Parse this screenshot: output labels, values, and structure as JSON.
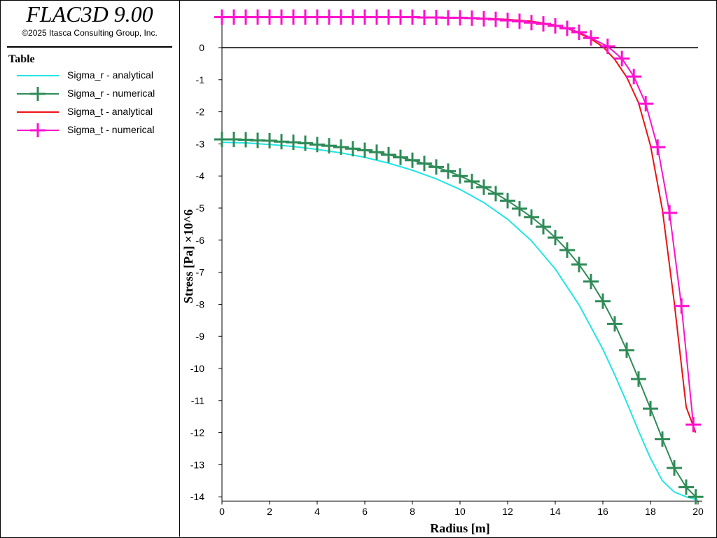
{
  "header": {
    "title": "FLAC3D 9.00",
    "copyright": "©2025 Itasca Consulting Group, Inc."
  },
  "legend": {
    "heading": "Table",
    "items": [
      {
        "label": "Sigma_r - analytical",
        "color": "#22e5e5",
        "marker": "none"
      },
      {
        "label": "Sigma_r - numerical",
        "color": "#2e8b57",
        "marker": "plus"
      },
      {
        "label": "Sigma_t - analytical",
        "color": "#ee1111",
        "marker": "none"
      },
      {
        "label": "Sigma_t - numerical",
        "color": "#ff11cc",
        "marker": "plus"
      }
    ]
  },
  "chart_data": {
    "type": "line",
    "xlabel": "Radius [m]",
    "ylabel": "Stress [Pa] ×10^6",
    "xlim": [
      0,
      20
    ],
    "ylim": [
      -14,
      1
    ],
    "x_ticks": [
      0,
      2,
      4,
      6,
      8,
      10,
      12,
      14,
      16,
      18,
      20
    ],
    "y_ticks": [
      0,
      -1,
      -2,
      -3,
      -4,
      -5,
      -6,
      -7,
      -8,
      -9,
      -10,
      -11,
      -12,
      -13,
      -14
    ],
    "zero_line": true,
    "legend_placement": "left panel",
    "series": [
      {
        "name": "Sigma_r - analytical",
        "color": "#22e5e5",
        "marker": "none",
        "x": [
          0,
          1,
          2,
          3,
          4,
          5,
          6,
          7,
          8,
          9,
          10,
          11,
          12,
          13,
          14,
          15,
          16,
          16.5,
          17,
          17.5,
          18,
          18.5,
          19,
          19.5,
          20
        ],
        "y": [
          -2.95,
          -2.97,
          -3.02,
          -3.08,
          -3.17,
          -3.28,
          -3.42,
          -3.6,
          -3.82,
          -4.09,
          -4.42,
          -4.83,
          -5.35,
          -6.02,
          -6.9,
          -8.02,
          -9.4,
          -10.2,
          -11.05,
          -11.95,
          -12.8,
          -13.5,
          -13.85,
          -14.0,
          -14.1
        ]
      },
      {
        "name": "Sigma_r - numerical",
        "color": "#2e8b57",
        "marker": "plus",
        "x": [
          0,
          0.5,
          1,
          1.5,
          2,
          2.5,
          3,
          3.5,
          4,
          4.5,
          5,
          5.5,
          6,
          6.5,
          7,
          7.5,
          8,
          8.5,
          9,
          9.5,
          10,
          10.5,
          11,
          11.5,
          12,
          12.5,
          13,
          13.5,
          14,
          14.5,
          15,
          15.5,
          16,
          16.5,
          17,
          17.5,
          18,
          18.5,
          19,
          19.5,
          19.9
        ],
        "y": [
          -2.86,
          -2.86,
          -2.87,
          -2.89,
          -2.9,
          -2.93,
          -2.95,
          -2.98,
          -3.02,
          -3.06,
          -3.1,
          -3.15,
          -3.2,
          -3.26,
          -3.34,
          -3.42,
          -3.51,
          -3.61,
          -3.72,
          -3.85,
          -4.0,
          -4.17,
          -4.35,
          -4.55,
          -4.77,
          -5.02,
          -5.28,
          -5.58,
          -5.92,
          -6.31,
          -6.76,
          -7.29,
          -7.9,
          -8.61,
          -9.43,
          -10.33,
          -11.25,
          -12.2,
          -13.1,
          -13.7,
          -14.0
        ]
      },
      {
        "name": "Sigma_t - analytical",
        "color": "#ee1111",
        "marker": "none",
        "x": [
          0,
          2,
          4,
          6,
          8,
          9,
          10,
          11,
          12,
          13,
          14,
          14.5,
          15,
          15.5,
          16,
          16.5,
          17,
          17.5,
          18,
          18.5,
          19,
          19.5,
          19.9
        ],
        "y": [
          0.95,
          0.95,
          0.95,
          0.95,
          0.95,
          0.94,
          0.93,
          0.91,
          0.88,
          0.82,
          0.7,
          0.6,
          0.45,
          0.27,
          0.03,
          -0.37,
          -0.92,
          -1.72,
          -3.05,
          -5.05,
          -7.95,
          -11.2,
          -12.0
        ]
      },
      {
        "name": "Sigma_t - numerical",
        "color": "#ff11cc",
        "marker": "plus",
        "x": [
          0,
          0.5,
          1,
          1.5,
          2,
          2.5,
          3,
          3.5,
          4,
          4.5,
          5,
          5.5,
          6,
          6.5,
          7,
          7.5,
          8,
          8.5,
          9,
          9.5,
          10,
          10.5,
          11,
          11.5,
          12,
          12.5,
          13,
          13.5,
          14,
          14.5,
          15,
          15.5,
          16.2,
          16.8,
          17.3,
          17.8,
          18.3,
          18.8,
          19.3,
          19.8
        ],
        "y": [
          0.95,
          0.95,
          0.95,
          0.95,
          0.95,
          0.95,
          0.95,
          0.95,
          0.95,
          0.95,
          0.95,
          0.95,
          0.95,
          0.95,
          0.95,
          0.95,
          0.95,
          0.94,
          0.94,
          0.93,
          0.93,
          0.92,
          0.9,
          0.88,
          0.85,
          0.82,
          0.78,
          0.74,
          0.68,
          0.6,
          0.48,
          0.3,
          0.04,
          -0.34,
          -0.9,
          -1.75,
          -3.1,
          -5.15,
          -8.05,
          -11.75
        ]
      }
    ]
  }
}
